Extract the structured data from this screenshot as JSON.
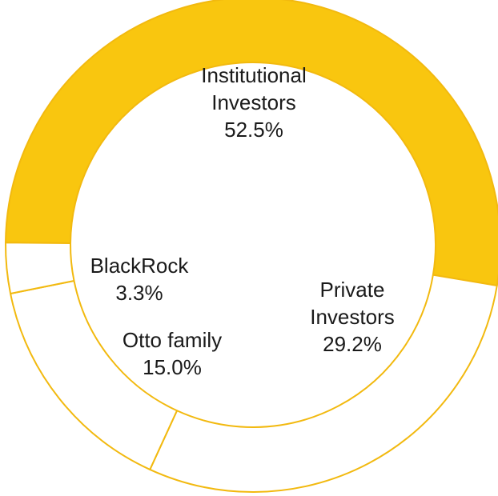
{
  "chart_data": {
    "type": "pie",
    "style": "donut",
    "title": "",
    "slices": [
      {
        "label_lines": [
          "Institutional",
          "Investors"
        ],
        "percent_text": "52.5%",
        "value": 52.5,
        "fill": "#F9C60F"
      },
      {
        "label_lines": [
          "Private",
          "Investors"
        ],
        "percent_text": "29.2%",
        "value": 29.2,
        "fill": "#FFFFFF"
      },
      {
        "label_lines": [
          "Otto family"
        ],
        "percent_text": "15.0%",
        "value": 15.0,
        "fill": "#FFFFFF"
      },
      {
        "label_lines": [
          "BlackRock"
        ],
        "percent_text": "3.3%",
        "value": 3.3,
        "fill": "#FFFFFF"
      }
    ],
    "stroke_color": "#F2B90F",
    "text_color": "#1a1a1a",
    "legend": "none"
  }
}
